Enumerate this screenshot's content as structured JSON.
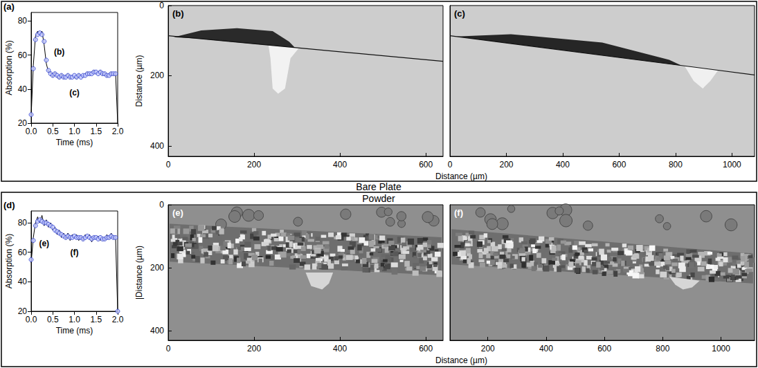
{
  "sections": [
    "Bare Plate",
    "Powder"
  ],
  "chart_data": [
    {
      "type": "line",
      "panel": "(a)",
      "x_label": "Time (ms)",
      "y_label": "Absorption (%)",
      "xlim": [
        0,
        2
      ],
      "ylim": [
        20,
        85
      ],
      "xticks": [
        {
          "value": 0,
          "label": "0.0"
        },
        {
          "value": 0.5,
          "label": "0.5"
        },
        {
          "value": 1,
          "label": "1.0"
        },
        {
          "value": 1.5,
          "label": "1.5"
        },
        {
          "value": 2,
          "label": "2.0"
        }
      ],
      "yticks": [
        20,
        40,
        60,
        80
      ],
      "grid": false,
      "series": [
        {
          "type": "line",
          "color": "#000000",
          "marker": "none",
          "line_style": "solid",
          "x": [
            0,
            0.05,
            0.1,
            0.15,
            0.2,
            0.25,
            0.3,
            0.35,
            0.4,
            0.45,
            0.5,
            0.55,
            0.6,
            0.65,
            0.7,
            0.75,
            0.8,
            0.85,
            0.9,
            0.95,
            1,
            1.05,
            1.1,
            1.15,
            1.2,
            1.25,
            1.3,
            1.35,
            1.4,
            1.45,
            1.5,
            1.55,
            1.6,
            1.65,
            1.7,
            1.75,
            1.8,
            1.85,
            1.9,
            1.95,
            2
          ],
          "values": [
            24,
            54,
            71,
            74,
            72,
            74,
            66,
            55,
            50,
            50,
            47,
            50,
            47,
            46,
            49,
            46,
            48,
            49,
            46,
            48,
            47,
            46,
            49,
            48,
            47,
            49,
            50,
            48,
            50,
            51,
            49,
            50,
            51,
            48,
            50,
            47,
            49,
            50,
            48,
            50,
            20
          ]
        },
        {
          "type": "scatter",
          "color": "#3344cc",
          "marker": "circle",
          "x": [
            0,
            0.05,
            0.1,
            0.15,
            0.2,
            0.25,
            0.3,
            0.35,
            0.4,
            0.45,
            0.5,
            0.55,
            0.6,
            0.65,
            0.7,
            0.75,
            0.8,
            0.85,
            0.9,
            0.95,
            1,
            1.05,
            1.1,
            1.15,
            1.2,
            1.25,
            1.3,
            1.35,
            1.4,
            1.45,
            1.5,
            1.55,
            1.6,
            1.65,
            1.7,
            1.75,
            1.8,
            1.85,
            1.9,
            1.95
          ],
          "values": [
            25,
            52,
            69,
            72,
            73,
            72,
            68,
            57,
            51,
            49,
            48,
            49,
            48,
            47,
            48,
            47,
            47,
            48,
            47,
            47,
            48,
            47,
            48,
            47,
            48,
            48,
            49,
            49,
            49,
            50,
            50,
            49,
            50,
            49,
            49,
            48,
            48,
            49,
            49,
            49
          ]
        }
      ],
      "annotations": [
        {
          "text": "(b)",
          "x": 0.65,
          "y": 62
        },
        {
          "text": "(c)",
          "x": 1.0,
          "y": 38
        }
      ]
    },
    {
      "type": "image",
      "panel": "(b)",
      "x_label": "Distance (µm)",
      "y_label": "Distance (µm)",
      "xlim": [
        0,
        640
      ],
      "ylim": [
        0,
        430
      ],
      "xticks": [
        0,
        200,
        400,
        600
      ],
      "yticks": [
        0,
        200,
        400
      ]
    },
    {
      "type": "image",
      "panel": "(c)",
      "xlim": [
        0,
        1080
      ],
      "ylim": [
        0,
        430
      ],
      "xticks": [
        0,
        200,
        400,
        600,
        800,
        1000
      ],
      "tick_labels": "x"
    },
    {
      "type": "line",
      "panel": "(d)",
      "x_label": "Time (ms)",
      "y_label": "Absorption (%)",
      "xlim": [
        0,
        2
      ],
      "ylim": [
        20,
        88
      ],
      "xticks": [
        {
          "value": 0,
          "label": "0.0"
        },
        {
          "value": 0.5,
          "label": "0.5"
        },
        {
          "value": 1,
          "label": "1.0"
        },
        {
          "value": 1.5,
          "label": "1.5"
        },
        {
          "value": 2,
          "label": "2.0"
        }
      ],
      "yticks": [
        20,
        40,
        60,
        80
      ],
      "grid": false,
      "series": [
        {
          "type": "line",
          "color": "#000000",
          "marker": "none",
          "line_style": "solid",
          "x": [
            0,
            0.05,
            0.1,
            0.15,
            0.2,
            0.25,
            0.3,
            0.35,
            0.4,
            0.45,
            0.5,
            0.55,
            0.6,
            0.65,
            0.7,
            0.75,
            0.8,
            0.85,
            0.9,
            0.95,
            1,
            1.05,
            1.1,
            1.15,
            1.2,
            1.25,
            1.3,
            1.35,
            1.4,
            1.45,
            1.5,
            1.55,
            1.6,
            1.65,
            1.7,
            1.75,
            1.8,
            1.85,
            1.9,
            1.95,
            2
          ],
          "values": [
            53,
            70,
            80,
            84,
            80,
            85,
            78,
            82,
            77,
            80,
            75,
            77,
            72,
            75,
            70,
            73,
            69,
            73,
            68,
            72,
            70,
            72,
            68,
            71,
            68,
            72,
            70,
            72,
            67,
            71,
            69,
            71,
            68,
            70,
            68,
            72,
            69,
            73,
            69,
            71,
            20
          ]
        },
        {
          "type": "scatter",
          "color": "#3344cc",
          "marker": "circle",
          "x": [
            0,
            0.05,
            0.1,
            0.15,
            0.2,
            0.25,
            0.3,
            0.35,
            0.4,
            0.45,
            0.5,
            0.55,
            0.6,
            0.65,
            0.7,
            0.75,
            0.8,
            0.85,
            0.9,
            0.95,
            1,
            1.05,
            1.1,
            1.15,
            1.2,
            1.25,
            1.3,
            1.35,
            1.4,
            1.45,
            1.5,
            1.55,
            1.6,
            1.65,
            1.7,
            1.75,
            1.8,
            1.85,
            1.9,
            1.95,
            2
          ],
          "values": [
            55,
            68,
            78,
            81,
            82,
            81,
            80,
            80,
            79,
            78,
            77,
            75,
            74,
            73,
            72,
            71,
            70,
            71,
            70,
            70,
            71,
            70,
            70,
            70,
            69,
            70,
            71,
            70,
            69,
            70,
            70,
            69,
            70,
            69,
            69,
            70,
            70,
            71,
            70,
            70,
            20
          ]
        }
      ],
      "annotations": [
        {
          "text": "(e)",
          "x": 0.3,
          "y": 66
        },
        {
          "text": "(f)",
          "x": 1.0,
          "y": 60
        }
      ]
    },
    {
      "type": "image",
      "panel": "(e)",
      "x_label": "Distance (µm)",
      "y_label": "|Distance (µm)",
      "xlim": [
        0,
        640
      ],
      "ylim": [
        0,
        430
      ],
      "xticks": [
        0,
        200,
        400,
        600
      ],
      "yticks": [
        0,
        200,
        400
      ]
    },
    {
      "type": "image",
      "panel": "(f)",
      "xlim": [
        70,
        1115
      ],
      "ylim": [
        0,
        430
      ],
      "xticks": [
        200,
        400,
        600,
        800,
        1000
      ],
      "tick_labels": "x"
    }
  ]
}
